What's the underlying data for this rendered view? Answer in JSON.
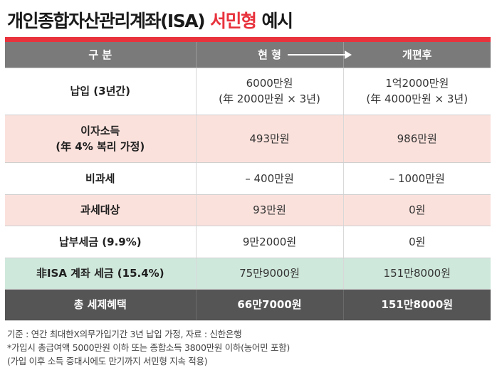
{
  "title": {
    "main": "개인종합자산관리계좌(ISA)",
    "accent": "서민형",
    "tail": "예시"
  },
  "table": {
    "headers": {
      "category": "구 분",
      "current": "현 형",
      "reform": "개편후"
    },
    "rows": [
      {
        "label": "납입 (3년간)",
        "label_sub": "",
        "current": "6000만원",
        "current_sub": "(年 2000만원 × 3년)",
        "reform": "1억2000만원",
        "reform_sub": "(年 4000만원 × 3년)"
      },
      {
        "label": "이자소득",
        "label_sub": "(年 4% 복리 가정)",
        "current": "493만원",
        "current_sub": "",
        "reform": "986만원",
        "reform_sub": ""
      },
      {
        "label": "비과세",
        "label_sub": "",
        "current": "– 400만원",
        "current_sub": "",
        "reform": "– 1000만원",
        "reform_sub": ""
      },
      {
        "label": "과세대상",
        "label_sub": "",
        "current": "93만원",
        "current_sub": "",
        "reform": "0원",
        "reform_sub": ""
      },
      {
        "label": "납부세금 (9.9%)",
        "label_sub": "",
        "current": "9만2000원",
        "current_sub": "",
        "reform": "0원",
        "reform_sub": ""
      },
      {
        "label": "非ISA 계좌 세금 (15.4%)",
        "label_sub": "",
        "current": "75만9000원",
        "current_sub": "",
        "reform": "151만8000원",
        "reform_sub": ""
      },
      {
        "label": "총 세제혜택",
        "label_sub": "",
        "current": "66만7000원",
        "current_sub": "",
        "reform": "151만8000원",
        "reform_sub": ""
      }
    ]
  },
  "notes": [
    "기준 : 연간 최대한X의무가입기간 3년 납입 가정, 자료 : 신한은행",
    "*가입시 총급여액 5000만원 이하 또는 종합소득 3800만원 이하(농어민 포함)",
    " (가입 이후 소득 증대시에도 만기까지 서민형 지속 적용)"
  ],
  "colors": {
    "accent": "#e8333d",
    "header_bg": "#7a7a7a",
    "pink_row": "#fbe1dc",
    "green_row": "#cfe8dc",
    "total_row": "#555555"
  }
}
